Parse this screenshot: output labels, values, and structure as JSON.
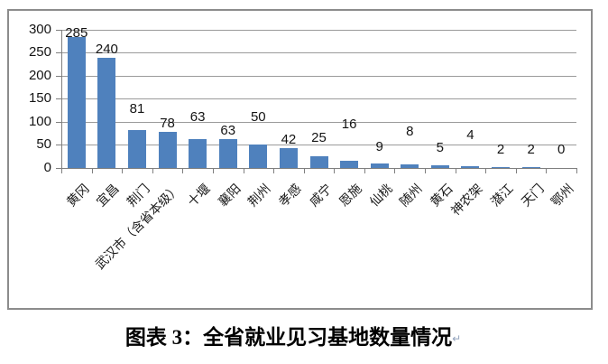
{
  "chart_data": {
    "type": "bar",
    "title": "图表 3：全省就业见习基地数量情况",
    "paragraph_mark": "↵",
    "categories": [
      "黄冈",
      "宜昌",
      "荆门",
      "武汉市（含省本级）",
      "十堰",
      "襄阳",
      "荆州",
      "孝感",
      "咸宁",
      "恩施",
      "仙桃",
      "随州",
      "黄石",
      "神农架",
      "潜江",
      "天门",
      "鄂州"
    ],
    "values": [
      285,
      240,
      81,
      78,
      63,
      63,
      50,
      42,
      25,
      16,
      9,
      8,
      5,
      4,
      2,
      2,
      0
    ],
    "yticks": [
      0,
      50,
      100,
      150,
      200,
      250,
      300
    ],
    "ylim": [
      0,
      300
    ],
    "xlabel": "",
    "ylabel": "",
    "grid": true,
    "legend_position": "none",
    "data_labels": true
  },
  "colors": {
    "bar": "#4f81bd",
    "gridline": "#9a9a9a",
    "axis": "#7f7f7f",
    "frame_border": "#8c8c8c",
    "label_text": "#141414"
  }
}
